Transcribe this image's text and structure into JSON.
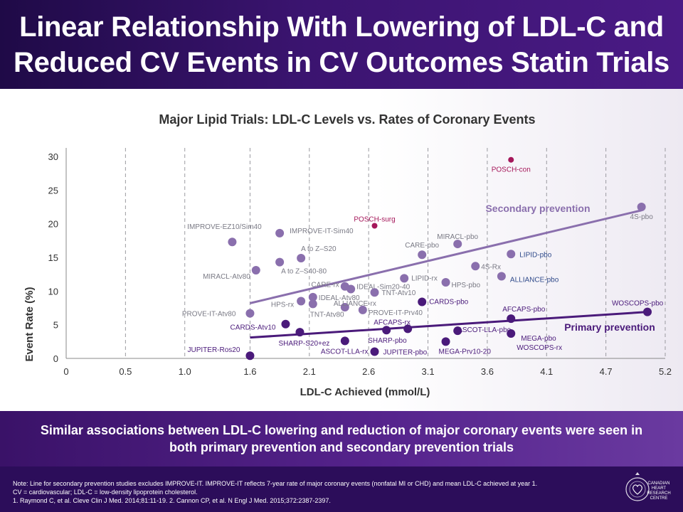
{
  "header": {
    "title_line1": "Linear Relationship With Lowering of LDL-C and",
    "title_line2": "Reduced CV Events in CV Outcomes Statin Trials"
  },
  "chart_data": {
    "type": "scatter",
    "title": "Major Lipid Trials: LDL-C Levels vs. Rates of Coronary Events",
    "xlabel": "LDL-C Achieved (mmol/L)",
    "ylabel": "Event Rate (%)",
    "x_ticks": [
      "0",
      "0.5",
      "1.0",
      "1.6",
      "2.1",
      "2.6",
      "3.1",
      "3.6",
      "4.1",
      "4.7",
      "5.2"
    ],
    "y_ticks": [
      "0",
      "5",
      "10",
      "15",
      "20",
      "25",
      "30"
    ],
    "xlim": [
      0,
      5.2
    ],
    "ylim": [
      0,
      30
    ],
    "grid": "vertical dashed",
    "points": [
      {
        "label": "POSCH-con",
        "x": 3.75,
        "y": 29.5,
        "group": "posch"
      },
      {
        "label": "POSCH-surg",
        "x": 2.6,
        "y": 19.7,
        "group": "posch"
      },
      {
        "label": "4S-pbo",
        "x": 4.85,
        "y": 22.5,
        "group": "secondary"
      },
      {
        "label": "IMPROVE-EZ10/Sim40",
        "x": 1.4,
        "y": 17.3,
        "group": "secondary"
      },
      {
        "label": "IMPROVE-IT-Sim40",
        "x": 1.8,
        "y": 18.6,
        "group": "secondary"
      },
      {
        "label": "A to Z–S20",
        "x": 1.98,
        "y": 14.9,
        "group": "secondary"
      },
      {
        "label": "A to Z–S40-80",
        "x": 1.8,
        "y": 14.3,
        "group": "secondary"
      },
      {
        "label": "MIRACL-Atv80",
        "x": 1.6,
        "y": 13.1,
        "group": "secondary"
      },
      {
        "label": "CARE-pbo",
        "x": 3.0,
        "y": 15.4,
        "group": "secondary"
      },
      {
        "label": "MIRACL-pbo",
        "x": 3.3,
        "y": 17.0,
        "group": "secondary"
      },
      {
        "label": "LIPID-pbo",
        "x": 3.75,
        "y": 15.5,
        "group": "secondary"
      },
      {
        "label": "4S-Rx",
        "x": 3.45,
        "y": 13.7,
        "group": "secondary"
      },
      {
        "label": "ALLIANCE-pbo",
        "x": 3.67,
        "y": 12.2,
        "group": "secondary"
      },
      {
        "label": "HPS-pbo",
        "x": 3.2,
        "y": 11.3,
        "group": "secondary"
      },
      {
        "label": "LIPID-rx",
        "x": 2.85,
        "y": 11.9,
        "group": "secondary"
      },
      {
        "label": "CARE-rx",
        "x": 2.35,
        "y": 10.7,
        "group": "secondary"
      },
      {
        "label": "IDEAL-Sim20-40",
        "x": 2.4,
        "y": 10.3,
        "group": "secondary"
      },
      {
        "label": "TNT-Atv10",
        "x": 2.6,
        "y": 9.8,
        "group": "secondary"
      },
      {
        "label": "IDEAL-Atv80",
        "x": 2.08,
        "y": 9.1,
        "group": "secondary"
      },
      {
        "label": "HPS-rx",
        "x": 1.98,
        "y": 8.5,
        "group": "secondary"
      },
      {
        "label": "TNT-Atv80",
        "x": 2.08,
        "y": 8.1,
        "group": "secondary"
      },
      {
        "label": "ALLIANCE-rx",
        "x": 2.35,
        "y": 7.6,
        "group": "secondary"
      },
      {
        "label": "PROVE-IT-Prv40",
        "x": 2.5,
        "y": 7.2,
        "group": "secondary"
      },
      {
        "label": "PROVE-IT-Atv80",
        "x": 1.55,
        "y": 6.7,
        "group": "secondary"
      },
      {
        "label": "CARDS-pbo",
        "x": 3.0,
        "y": 8.4,
        "group": "primary"
      },
      {
        "label": "WOSCOPS-pbo",
        "x": 4.9,
        "y": 6.9,
        "group": "primary"
      },
      {
        "label": "AFCAPS-pbo",
        "x": 3.75,
        "y": 5.9,
        "group": "primary"
      },
      {
        "label": "CARDS-Atv10",
        "x": 1.85,
        "y": 5.1,
        "group": "primary"
      },
      {
        "label": "AFCAPS-rx",
        "x": 2.88,
        "y": 4.4,
        "group": "primary"
      },
      {
        "label": "ASCOT-LLA-pbo",
        "x": 3.3,
        "y": 4.1,
        "group": "primary"
      },
      {
        "label": "SHARP-pbo",
        "x": 2.7,
        "y": 4.2,
        "group": "primary"
      },
      {
        "label": "SHARP-S20+ez",
        "x": 1.97,
        "y": 3.9,
        "group": "primary"
      },
      {
        "label": "MEGA-pbo",
        "x": 3.75,
        "y": 3.7,
        "group": "primary"
      },
      {
        "label": "WOSCOPS-rx",
        "x": 3.75,
        "y": 3.7,
        "group": "primary"
      },
      {
        "label": "ASCOT-LLA-rx",
        "x": 2.35,
        "y": 2.6,
        "group": "primary"
      },
      {
        "label": "MEGA-Prv10-20",
        "x": 3.2,
        "y": 2.5,
        "group": "primary"
      },
      {
        "label": "JUPITER-pbo",
        "x": 2.6,
        "y": 1.0,
        "group": "primary"
      },
      {
        "label": "JUPITER-Ros20",
        "x": 1.55,
        "y": 0.4,
        "group": "primary"
      }
    ],
    "trendlines": [
      {
        "name": "Secondary prevention",
        "x": [
          1.55,
          4.85
        ],
        "y": [
          8.2,
          22.0
        ]
      },
      {
        "name": "Primary prevention",
        "x": [
          1.55,
          4.9
        ],
        "y": [
          3.1,
          6.9
        ]
      }
    ],
    "colors": {
      "secondary": "#8a6fad",
      "primary": "#4a1a7a",
      "posch": "#a5175a",
      "label_gray": "#7a7a85",
      "label_blue": "#2f4a8a"
    }
  },
  "banner": {
    "text_line1": "Similar associations between LDL-C lowering and reduction of major coronary events were seen in",
    "text_line2": "both primary prevention and secondary prevention trials"
  },
  "footer": {
    "note1": "Note: Line for secondary prevention studies excludes IMPROVE-IT. IMPROVE-IT reflects 7-year rate of major coronary events (nonfatal MI or CHD) and mean LDL-C achieved at year 1.",
    "note2": "CV = cardiovascular; LDL-C = low-density lipoprotein cholesterol.",
    "note3": "1. Raymond C, et al. Cleve Clin J Med. 2014;81:11-19. 2. Cannon CP, et al. N Engl J Med. 2015;372:2387-2397.",
    "logo_line1": "CANADIAN",
    "logo_line2": "HEART",
    "logo_line3": "RESEARCH",
    "logo_line4": "CENTRE"
  }
}
